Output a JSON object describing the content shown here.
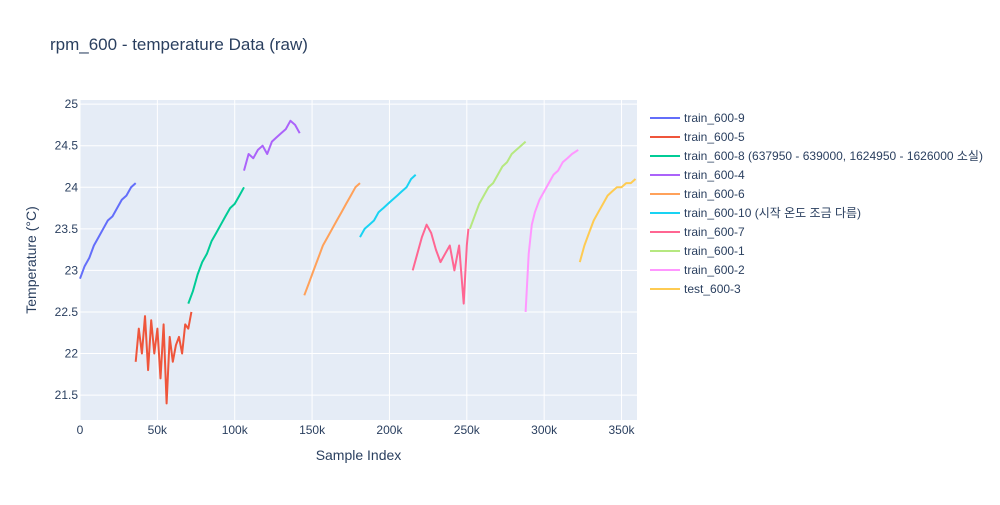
{
  "chart_data": {
    "type": "line",
    "title": "rpm_600 - temperature Data (raw)",
    "xlabel": "Sample Index",
    "ylabel": "Temperature (°C)",
    "xlim": [
      0,
      360000
    ],
    "ylim": [
      21.2,
      25.05
    ],
    "x_ticks": [
      0,
      50000,
      100000,
      150000,
      200000,
      250000,
      300000,
      350000
    ],
    "x_tick_labels": [
      "0",
      "50k",
      "100k",
      "150k",
      "200k",
      "250k",
      "300k",
      "350k"
    ],
    "y_ticks": [
      21.5,
      22,
      22.5,
      23,
      23.5,
      24,
      24.5,
      25
    ],
    "y_tick_labels": [
      "21.5",
      "22",
      "22.5",
      "23",
      "23.5",
      "24",
      "24.5",
      "25"
    ],
    "grid": true,
    "legend_position": "right",
    "plot_background": "#e5ecf6",
    "series": [
      {
        "name": "train_600-9",
        "color": "#636efa",
        "x": [
          0,
          3000,
          6000,
          9000,
          12000,
          15000,
          18000,
          21000,
          24000,
          27000,
          30000,
          33000,
          36000
        ],
        "y": [
          22.9,
          23.05,
          23.15,
          23.3,
          23.4,
          23.5,
          23.6,
          23.65,
          23.75,
          23.85,
          23.9,
          24.0,
          24.05
        ]
      },
      {
        "name": "train_600-5",
        "color": "#ef553b",
        "x": [
          36000,
          38000,
          40000,
          42000,
          44000,
          46000,
          48000,
          50000,
          52000,
          54000,
          56000,
          58000,
          60000,
          62000,
          64000,
          66000,
          68000,
          70000,
          72000
        ],
        "y": [
          21.9,
          22.3,
          22.0,
          22.45,
          21.8,
          22.4,
          22.0,
          22.3,
          21.7,
          22.35,
          21.4,
          22.2,
          21.9,
          22.1,
          22.2,
          22.0,
          22.35,
          22.3,
          22.5
        ]
      },
      {
        "name": "train_600-8 (637950 - 639000, 1624950 - 1626000 소실)",
        "color": "#00cc96",
        "x": [
          70000,
          73000,
          76000,
          79000,
          82000,
          85000,
          88000,
          91000,
          94000,
          97000,
          100000,
          103000,
          106000
        ],
        "y": [
          22.6,
          22.75,
          22.95,
          23.1,
          23.2,
          23.35,
          23.45,
          23.55,
          23.65,
          23.75,
          23.8,
          23.9,
          24.0
        ]
      },
      {
        "name": "train_600-4",
        "color": "#ab63fa",
        "x": [
          106000,
          109000,
          112000,
          115000,
          118000,
          121000,
          124000,
          127000,
          130000,
          133000,
          136000,
          139000,
          142000
        ],
        "y": [
          24.2,
          24.4,
          24.35,
          24.45,
          24.5,
          24.4,
          24.55,
          24.6,
          24.65,
          24.7,
          24.8,
          24.75,
          24.65
        ]
      },
      {
        "name": "train_600-6",
        "color": "#ffa15a",
        "x": [
          145000,
          148000,
          151000,
          154000,
          157000,
          160000,
          163000,
          166000,
          169000,
          172000,
          175000,
          178000,
          181000
        ],
        "y": [
          22.7,
          22.85,
          23.0,
          23.15,
          23.3,
          23.4,
          23.5,
          23.6,
          23.7,
          23.8,
          23.9,
          24.0,
          24.05
        ]
      },
      {
        "name": "train_600-10 (시작 온도 조금 다름)",
        "color": "#19d3f3",
        "x": [
          181000,
          184000,
          187000,
          190000,
          193000,
          196000,
          199000,
          202000,
          205000,
          208000,
          211000,
          214000,
          217000
        ],
        "y": [
          23.4,
          23.5,
          23.55,
          23.6,
          23.7,
          23.75,
          23.8,
          23.85,
          23.9,
          23.95,
          24.0,
          24.1,
          24.15
        ]
      },
      {
        "name": "train_600-7",
        "color": "#ff6692",
        "x": [
          215000,
          218000,
          221000,
          224000,
          227000,
          230000,
          233000,
          236000,
          239000,
          242000,
          245000,
          248000,
          250000,
          251000
        ],
        "y": [
          23.0,
          23.2,
          23.4,
          23.55,
          23.45,
          23.25,
          23.1,
          23.2,
          23.3,
          23.0,
          23.3,
          22.6,
          23.3,
          23.5
        ]
      },
      {
        "name": "train_600-1",
        "color": "#b6e880",
        "x": [
          252000,
          255000,
          258000,
          261000,
          264000,
          267000,
          270000,
          273000,
          276000,
          279000,
          282000,
          285000,
          288000
        ],
        "y": [
          23.5,
          23.65,
          23.8,
          23.9,
          24.0,
          24.05,
          24.15,
          24.25,
          24.3,
          24.4,
          24.45,
          24.5,
          24.55
        ]
      },
      {
        "name": "train_600-2",
        "color": "#ff97ff",
        "x": [
          288000,
          290000,
          292000,
          294000,
          297000,
          300000,
          303000,
          306000,
          309000,
          312000,
          315000,
          318000,
          322000
        ],
        "y": [
          22.5,
          23.2,
          23.55,
          23.7,
          23.85,
          23.95,
          24.05,
          24.15,
          24.2,
          24.3,
          24.35,
          24.4,
          24.45
        ]
      },
      {
        "name": "test_600-3",
        "color": "#fecb52",
        "x": [
          323000,
          326000,
          329000,
          332000,
          335000,
          338000,
          341000,
          344000,
          347000,
          350000,
          353000,
          356000,
          359000
        ],
        "y": [
          23.1,
          23.3,
          23.45,
          23.6,
          23.7,
          23.8,
          23.9,
          23.95,
          24.0,
          24.0,
          24.05,
          24.05,
          24.1
        ]
      }
    ]
  }
}
